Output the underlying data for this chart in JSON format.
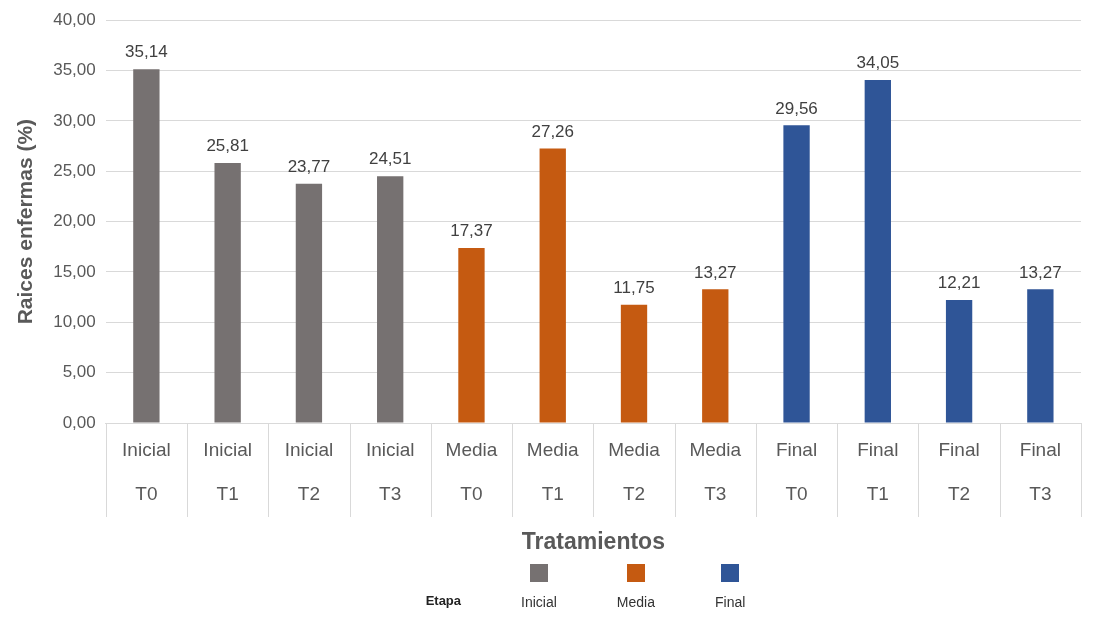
{
  "chart_data": {
    "type": "bar",
    "xlabel": "Tratamientos",
    "ylabel": "Raices enfermas (%)",
    "legend_title": "Etapa",
    "categories": [
      "Inicial\nT0",
      "Inicial\nT1",
      "Inicial\nT2",
      "Inicial\nT3",
      "Media\nT0",
      "Media\nT1",
      "Media\nT2",
      "Media\nT3",
      "Final\nT0",
      "Final\nT1",
      "Final\nT2",
      "Final\nT3"
    ],
    "series": [
      {
        "name": "Inicial",
        "color": "#767171",
        "values": [
          35.14,
          25.81,
          23.77,
          24.51,
          null,
          null,
          null,
          null,
          null,
          null,
          null,
          null
        ]
      },
      {
        "name": "Media",
        "color": "#c55a11",
        "values": [
          null,
          null,
          null,
          null,
          17.37,
          27.26,
          11.75,
          13.27,
          null,
          null,
          null,
          null
        ]
      },
      {
        "name": "Final",
        "color": "#2f5597",
        "values": [
          null,
          null,
          null,
          null,
          null,
          null,
          null,
          null,
          29.56,
          34.05,
          12.21,
          13.27
        ]
      }
    ],
    "value_labels": [
      "35,14",
      "25,81",
      "23,77",
      "24,51",
      "17,37",
      "27,26",
      "11,75",
      "13,27",
      "29,56",
      "34,05",
      "12,21",
      "13,27"
    ],
    "ylim": [
      0,
      40
    ],
    "yticks": [
      {
        "value": 0,
        "label": "0,00"
      },
      {
        "value": 5,
        "label": "5,00"
      },
      {
        "value": 10,
        "label": "10,00"
      },
      {
        "value": 15,
        "label": "15,00"
      },
      {
        "value": 20,
        "label": "20,00"
      },
      {
        "value": 25,
        "label": "25,00"
      },
      {
        "value": 30,
        "label": "30,00"
      },
      {
        "value": 35,
        "label": "35,00"
      },
      {
        "value": 40,
        "label": "40,00"
      }
    ],
    "grid": "y",
    "legend": "bottom"
  }
}
